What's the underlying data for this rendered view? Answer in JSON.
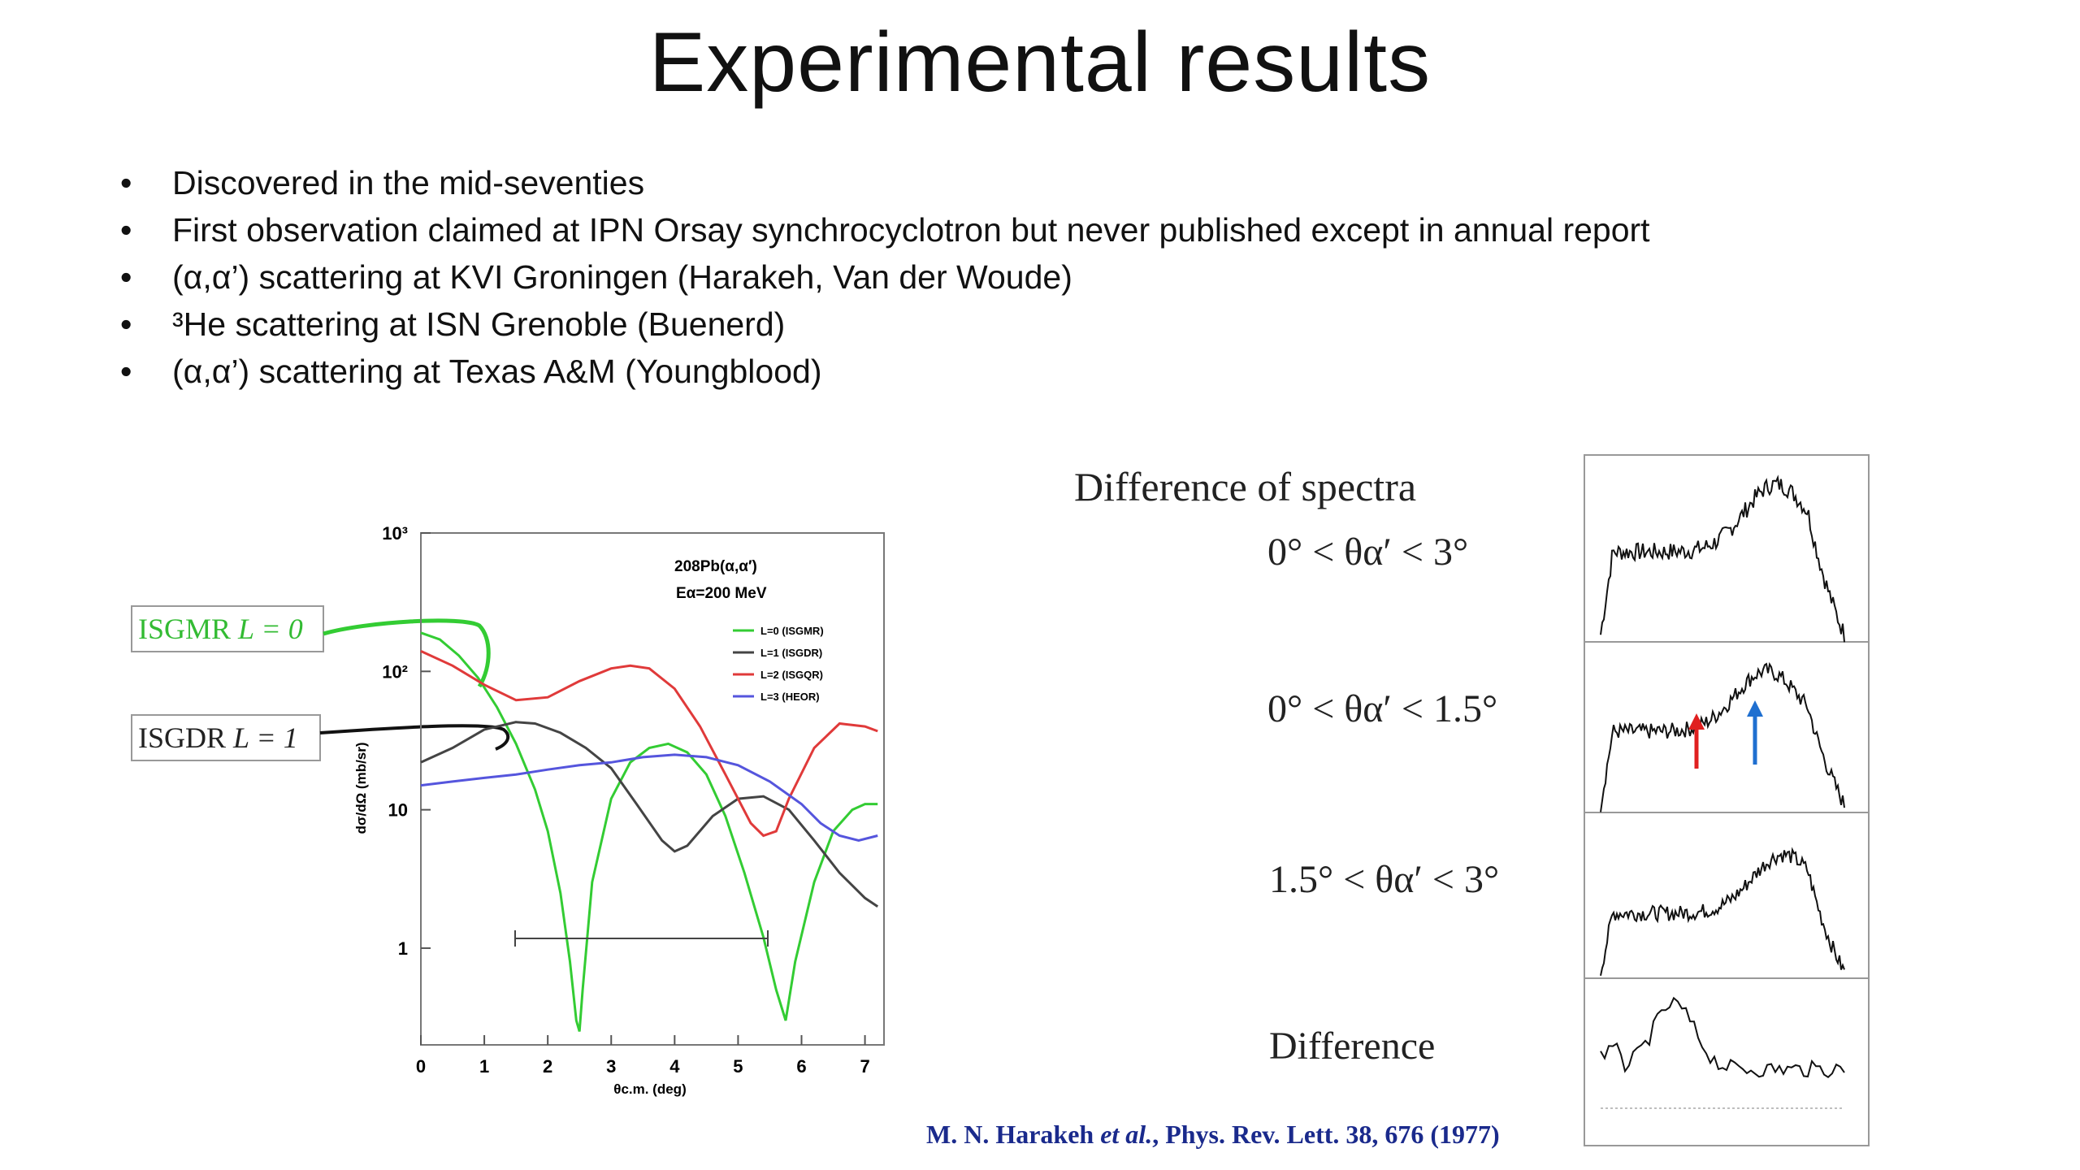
{
  "slide": {
    "title": "Experimental results",
    "bullets": [
      "Discovered in the mid-seventies",
      "First observation claimed at IPN Orsay synchrocyclotron but never published except in annual report",
      "(α,α’) scattering at KVI Groningen (Harakeh, Van der Woude)",
      "³He scattering at ISN Grenoble (Buenerd)",
      "(α,α’) scattering at Texas A&M (Youngblood)"
    ]
  },
  "left_figure": {
    "callout_isgmr": {
      "name": "ISGMR",
      "l_text": "L = 0"
    },
    "callout_isgdr": {
      "name": "ISGDR",
      "l_text": "L = 1"
    },
    "reaction": "208Pb(α,α′)",
    "energy": "Eα=200 MeV",
    "legend": [
      "L=0 (ISGMR)",
      "L=1 (ISGDR)",
      "L=2 (ISGQR)",
      "L=3 (HEOR)"
    ],
    "ylabel": "dσ/dΩ (mb/sr)",
    "xlabel": "θc.m. (deg)",
    "x_ticks": [
      "0",
      "1",
      "2",
      "3",
      "4",
      "5",
      "6",
      "7"
    ],
    "y_ticks": [
      "10³",
      "10²",
      "10",
      "1"
    ]
  },
  "chart_data": {
    "type": "line",
    "title": "208Pb(α,α′) Eα=200 MeV",
    "xlabel": "θc.m. (deg)",
    "ylabel": "dσ/dΩ (mb/sr)",
    "xlim": [
      0,
      7.3
    ],
    "ylim": [
      0.2,
      1000
    ],
    "yscale": "log",
    "series": [
      {
        "name": "L=0 (ISGMR)",
        "color": "#33cc33",
        "x": [
          0,
          0.3,
          0.6,
          0.9,
          1.2,
          1.5,
          1.8,
          2.0,
          2.2,
          2.35,
          2.45,
          2.5,
          2.55,
          2.7,
          3.0,
          3.3,
          3.6,
          3.9,
          4.2,
          4.5,
          4.8,
          5.1,
          5.4,
          5.6,
          5.75,
          5.9,
          6.2,
          6.5,
          6.8,
          7.0,
          7.2
        ],
        "y": [
          190,
          170,
          130,
          90,
          55,
          30,
          14,
          7,
          2.5,
          0.8,
          0.3,
          0.25,
          0.5,
          3,
          12,
          22,
          28,
          30,
          26,
          18,
          9,
          3.5,
          1.2,
          0.5,
          0.3,
          0.8,
          3,
          7,
          10,
          11,
          11
        ]
      },
      {
        "name": "L=1 (ISGDR)",
        "color": "#444444",
        "x": [
          0,
          0.5,
          1.0,
          1.5,
          1.8,
          2.2,
          2.6,
          3.0,
          3.4,
          3.8,
          4.0,
          4.2,
          4.6,
          5.0,
          5.4,
          5.8,
          6.2,
          6.6,
          7.0,
          7.2
        ],
        "y": [
          22,
          28,
          38,
          43,
          42,
          36,
          28,
          20,
          11,
          6,
          5,
          5.5,
          9,
          12,
          12.5,
          10,
          6,
          3.5,
          2.3,
          2
        ]
      },
      {
        "name": "L=2 (ISGQR)",
        "color": "#e03a3a",
        "x": [
          0,
          0.5,
          1.0,
          1.5,
          2.0,
          2.5,
          3.0,
          3.3,
          3.6,
          4.0,
          4.4,
          4.8,
          5.2,
          5.4,
          5.6,
          5.8,
          6.2,
          6.6,
          7.0,
          7.2
        ],
        "y": [
          140,
          110,
          80,
          62,
          65,
          85,
          105,
          110,
          105,
          75,
          40,
          18,
          8,
          6.5,
          7,
          12,
          28,
          42,
          40,
          37
        ]
      },
      {
        "name": "L=3 (HEOR)",
        "color": "#5555dd",
        "x": [
          0,
          0.5,
          1,
          1.5,
          2,
          2.5,
          3,
          3.5,
          4,
          4.5,
          5,
          5.5,
          6,
          6.3,
          6.6,
          6.9,
          7.2
        ],
        "y": [
          15,
          16,
          17,
          18,
          19.5,
          21,
          22,
          24,
          25,
          24,
          21,
          16,
          11,
          8,
          6.5,
          6,
          6.5
        ]
      }
    ],
    "x_ticks": [
      0,
      1,
      2,
      3,
      4,
      5,
      6,
      7
    ],
    "y_ticks": [
      1,
      10,
      100,
      1000
    ],
    "grid": false,
    "legend": "top-right"
  },
  "spectra_panel": {
    "heading": "Difference of spectra",
    "labels": [
      "0° < θα′ < 3°",
      "0° < θα′ < 1.5°",
      "1.5° < θα′ < 3°",
      "Difference"
    ],
    "arrow_colors": [
      "#e02020",
      "#1f6fd0"
    ]
  },
  "reference": {
    "authors": "M. N. Harakeh",
    "etal": "et al.",
    "rest": ", Phys. Rev. Lett. 38, 676 (1977)"
  }
}
